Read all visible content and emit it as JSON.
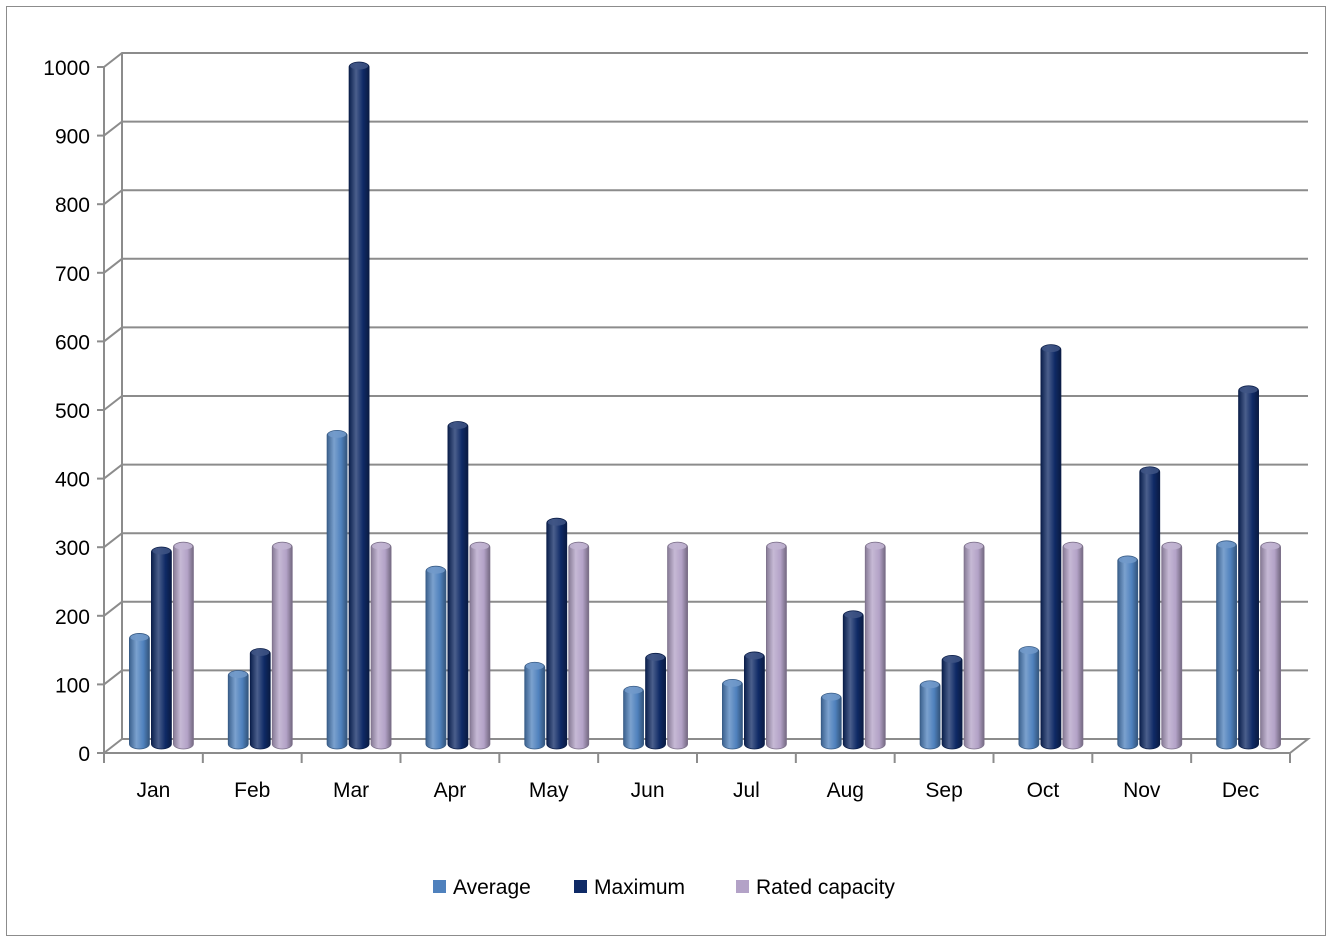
{
  "chart_data": {
    "type": "bar",
    "title": "",
    "xlabel": "",
    "ylabel": "",
    "ylim": [
      0,
      1000
    ],
    "yticks": [
      0,
      100,
      200,
      300,
      400,
      500,
      600,
      700,
      800,
      900,
      1000
    ],
    "grid": true,
    "legend_position": "bottom",
    "categories": [
      "Jan",
      "Feb",
      "Mar",
      "Apr",
      "May",
      "Jun",
      "Jul",
      "Aug",
      "Sep",
      "Oct",
      "Nov",
      "Dec"
    ],
    "series": [
      {
        "name": "Average",
        "color": "#4f81bd",
        "values": [
          167,
          113,
          463,
          265,
          125,
          90,
          100,
          80,
          98,
          148,
          280,
          302
        ]
      },
      {
        "name": "Maximum",
        "color": "#0f2a66",
        "values": [
          293,
          145,
          1000,
          476,
          335,
          138,
          140,
          200,
          135,
          588,
          410,
          528
        ]
      },
      {
        "name": "Rated capacity",
        "color": "#b3a2c7",
        "values": [
          300,
          300,
          300,
          300,
          300,
          300,
          300,
          300,
          300,
          300,
          300,
          300
        ]
      }
    ]
  }
}
